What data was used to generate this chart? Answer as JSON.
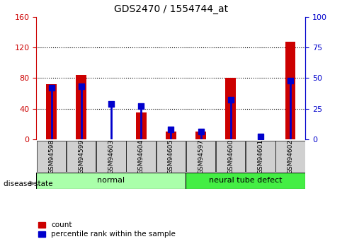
{
  "title": "GDS2470 / 1554744_at",
  "samples": [
    "GSM94598",
    "GSM94599",
    "GSM94603",
    "GSM94604",
    "GSM94605",
    "GSM94597",
    "GSM94600",
    "GSM94601",
    "GSM94602"
  ],
  "counts": [
    72,
    84,
    0,
    35,
    10,
    10,
    80,
    0,
    128
  ],
  "percentiles": [
    42,
    43,
    29,
    27,
    8,
    6,
    32,
    2,
    48
  ],
  "groups": [
    {
      "label": "normal",
      "start": 0,
      "end": 5,
      "color": "#aaffaa"
    },
    {
      "label": "neural tube defect",
      "start": 5,
      "end": 9,
      "color": "#44ee44"
    }
  ],
  "left_ylim": [
    0,
    160
  ],
  "right_ylim": [
    0,
    100
  ],
  "left_yticks": [
    0,
    40,
    80,
    120,
    160
  ],
  "right_yticks": [
    0,
    25,
    50,
    75,
    100
  ],
  "left_tick_color": "#cc0000",
  "right_tick_color": "#0000cc",
  "bar_color_count": "#cc0000",
  "bar_color_pct": "#0000cc",
  "red_bar_width": 0.35,
  "blue_marker_size": 6,
  "grid_color": "black",
  "grid_style": "dotted",
  "bg_plot": "white",
  "legend_count_label": "count",
  "legend_pct_label": "percentile rank within the sample",
  "disease_state_label": "disease state",
  "title_fontsize": 10
}
